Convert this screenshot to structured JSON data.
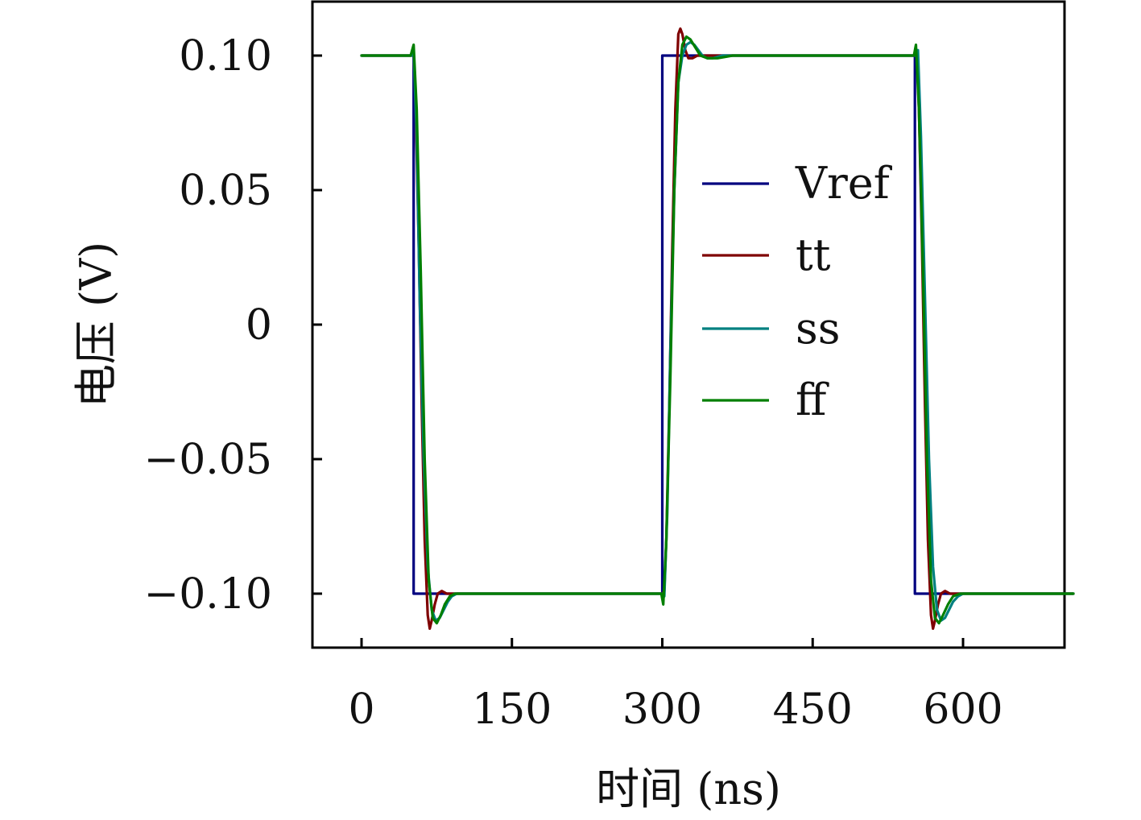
{
  "chart_data": {
    "type": "line",
    "xlabel": "时间 (ns)",
    "ylabel": "电压 (V)",
    "xlim": [
      -50,
      700
    ],
    "ylim": [
      -0.12,
      0.12
    ],
    "xticks": [
      0,
      150,
      300,
      450,
      600
    ],
    "xtick_labels": [
      "0",
      "150",
      "300",
      "450",
      "600"
    ],
    "yticks": [
      0.1,
      0.05,
      0,
      -0.05,
      -0.1
    ],
    "ytick_labels": [
      "0.10",
      "0.05",
      "0",
      "−0.05",
      "−0.10"
    ],
    "grid": false,
    "legend_position": "right-center",
    "series": [
      {
        "name": "Vref",
        "color": "#00007f",
        "x": [
          0,
          52,
          52,
          300,
          300,
          552,
          552,
          710
        ],
        "y": [
          0.1,
          0.1,
          -0.1,
          -0.1,
          0.1,
          0.1,
          -0.1,
          -0.1
        ]
      },
      {
        "name": "tt",
        "color": "#7f0000",
        "x": [
          0,
          50,
          52,
          54,
          57,
          60,
          63,
          66,
          68,
          70,
          73,
          76,
          80,
          85,
          90,
          100,
          300,
          302,
          304,
          307,
          310,
          313,
          316,
          318,
          320,
          323,
          326,
          330,
          335,
          340,
          350,
          552,
          554,
          556,
          559,
          562,
          565,
          568,
          570,
          572,
          575,
          578,
          582,
          587,
          592,
          602,
          710
        ],
        "y": [
          0.1,
          0.1,
          0.101,
          0.08,
          0.03,
          -0.03,
          -0.08,
          -0.108,
          -0.113,
          -0.11,
          -0.104,
          -0.1,
          -0.099,
          -0.1,
          -0.1,
          -0.1,
          -0.1,
          -0.099,
          -0.08,
          -0.03,
          0.03,
          0.08,
          0.108,
          0.11,
          0.108,
          0.102,
          0.099,
          0.099,
          0.1,
          0.1,
          0.1,
          0.1,
          0.101,
          0.08,
          0.03,
          -0.03,
          -0.08,
          -0.108,
          -0.113,
          -0.11,
          -0.104,
          -0.1,
          -0.099,
          -0.1,
          -0.1,
          -0.1,
          -0.1
        ]
      },
      {
        "name": "ss",
        "color": "#008080",
        "x": [
          0,
          50,
          52,
          55,
          58,
          62,
          66,
          70,
          74,
          78,
          82,
          86,
          90,
          95,
          100,
          110,
          300,
          302,
          305,
          308,
          312,
          316,
          320,
          324,
          328,
          332,
          336,
          340,
          345,
          350,
          360,
          552,
          555,
          558,
          562,
          566,
          570,
          574,
          578,
          582,
          586,
          590,
          595,
          600,
          610,
          710
        ],
        "y": [
          0.1,
          0.1,
          0.102,
          0.07,
          0.01,
          -0.05,
          -0.09,
          -0.106,
          -0.11,
          -0.109,
          -0.106,
          -0.103,
          -0.101,
          -0.1,
          -0.1,
          -0.1,
          -0.1,
          -0.101,
          -0.07,
          -0.01,
          0.05,
          0.09,
          0.1,
          0.104,
          0.105,
          0.104,
          0.102,
          0.1,
          0.099,
          0.099,
          0.1,
          0.1,
          0.102,
          0.07,
          0.01,
          -0.05,
          -0.09,
          -0.106,
          -0.11,
          -0.109,
          -0.106,
          -0.103,
          -0.101,
          -0.1,
          -0.1,
          -0.1
        ]
      },
      {
        "name": "ff",
        "color": "#007f00",
        "x": [
          0,
          49,
          52,
          55,
          59,
          63,
          67,
          71,
          75,
          79,
          83,
          88,
          93,
          100,
          110,
          120,
          299,
          301,
          304,
          308,
          312,
          316,
          320,
          324,
          328,
          333,
          338,
          345,
          355,
          370,
          551,
          553,
          556,
          560,
          564,
          568,
          572,
          576,
          580,
          585,
          590,
          597,
          605,
          615,
          710
        ],
        "y": [
          0.1,
          0.1,
          0.104,
          0.08,
          0.02,
          -0.05,
          -0.095,
          -0.109,
          -0.111,
          -0.108,
          -0.104,
          -0.101,
          -0.1,
          -0.1,
          -0.1,
          -0.1,
          -0.1,
          -0.104,
          -0.08,
          -0.02,
          0.05,
          0.09,
          0.104,
          0.107,
          0.106,
          0.103,
          0.1,
          0.099,
          0.099,
          0.1,
          0.1,
          0.104,
          0.08,
          0.02,
          -0.05,
          -0.095,
          -0.109,
          -0.111,
          -0.108,
          -0.104,
          -0.101,
          -0.1,
          -0.1,
          -0.1,
          -0.1
        ]
      }
    ]
  }
}
